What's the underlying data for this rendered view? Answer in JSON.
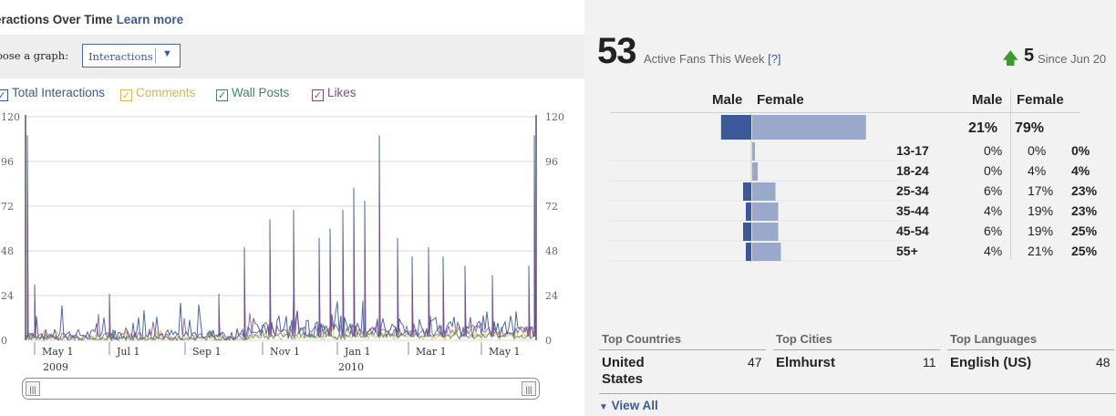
{
  "left": {
    "title": "eractions Over Time",
    "learn_more": "Learn more",
    "choose_label": "oose a graph:",
    "select_value": "Interactions",
    "legend": [
      {
        "label": "Total Interactions",
        "color": "#3b5998"
      },
      {
        "label": "Comments",
        "color": "#e0b44a"
      },
      {
        "label": "Wall Posts",
        "color": "#3c8a5a"
      },
      {
        "label": "Likes",
        "color": "#7a4e8e"
      }
    ],
    "y_ticks": [
      "0",
      "24",
      "48",
      "72",
      "96",
      "120"
    ],
    "x_ticks": [
      "May 1",
      "Jul 1",
      "Sep 1",
      "Nov 1",
      "Jan 1",
      "Mar 1",
      "May 1"
    ],
    "years": [
      "2009",
      "2010"
    ]
  },
  "chart_data": {
    "type": "line",
    "ylim": [
      0,
      120
    ],
    "y_ticks": [
      0,
      24,
      48,
      72,
      96,
      120
    ],
    "x_tick_labels": [
      "May 1",
      "Jul 1",
      "Sep 1",
      "Nov 1",
      "Jan 1",
      "Mar 1",
      "May 1"
    ],
    "year_labels": [
      "2009",
      "2010"
    ],
    "series": [
      {
        "name": "Total Interactions",
        "color": "#3b5998",
        "peaks": [
          [
            30,
            110
          ],
          [
            38,
            30
          ],
          [
            120,
            25
          ],
          [
            240,
            25
          ],
          [
            268,
            50
          ],
          [
            296,
            65
          ],
          [
            322,
            70
          ],
          [
            350,
            55
          ],
          [
            362,
            60
          ],
          [
            376,
            70
          ],
          [
            388,
            82
          ],
          [
            400,
            75
          ],
          [
            416,
            110
          ],
          [
            436,
            55
          ],
          [
            452,
            45
          ],
          [
            470,
            50
          ],
          [
            486,
            45
          ],
          [
            510,
            40
          ],
          [
            540,
            35
          ],
          [
            580,
            40
          ],
          [
            586,
            110
          ]
        ]
      },
      {
        "name": "Comments",
        "color": "#e0b44a",
        "peaks": []
      },
      {
        "name": "Wall Posts",
        "color": "#3c8a5a",
        "peaks": []
      },
      {
        "name": "Likes",
        "color": "#7a4e8e",
        "peaks": []
      }
    ]
  },
  "right": {
    "active_count": "53",
    "active_label": "Active Fans This Week",
    "help": "[?]",
    "change": "5",
    "since": "Since Jun 20",
    "male": "Male",
    "female": "Female",
    "overall": {
      "male": "21%",
      "female": "79%"
    },
    "ages": [
      {
        "label": "13-17",
        "male": "0%",
        "female": "0%",
        "total": "0%",
        "m": 0,
        "f": 0
      },
      {
        "label": "18-24",
        "male": "0%",
        "female": "4%",
        "total": "4%",
        "m": 0,
        "f": 4
      },
      {
        "label": "25-34",
        "male": "6%",
        "female": "17%",
        "total": "23%",
        "m": 6,
        "f": 17
      },
      {
        "label": "35-44",
        "male": "4%",
        "female": "19%",
        "total": "23%",
        "m": 4,
        "f": 19
      },
      {
        "label": "45-54",
        "male": "6%",
        "female": "19%",
        "total": "25%",
        "m": 6,
        "f": 19
      },
      {
        "label": "55+",
        "male": "4%",
        "female": "21%",
        "total": "25%",
        "m": 4,
        "f": 21
      }
    ],
    "top_countries_label": "Top Countries",
    "top_cities_label": "Top Cities",
    "top_languages_label": "Top Languages",
    "country": "United States",
    "country_count": "47",
    "city": "Elmhurst",
    "city_count": "11",
    "language": "English (US)",
    "language_count": "48",
    "view_all": "View All"
  }
}
